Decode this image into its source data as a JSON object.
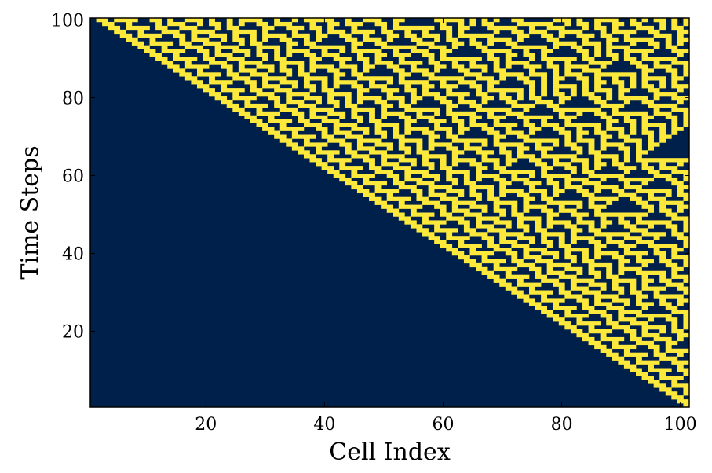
{
  "chart_data": {
    "type": "heatmap",
    "title": "",
    "xlabel": "Cell Index",
    "ylabel": "Time Steps",
    "xlim": [
      1,
      101
    ],
    "ylim": [
      1,
      100
    ],
    "x_ticks": [
      20,
      40,
      60,
      80,
      100
    ],
    "y_ticks": [
      20,
      40,
      60,
      80,
      100
    ],
    "grid": false,
    "legend": "none",
    "colormap": {
      "0": "#00204c",
      "1": "#fde93b"
    },
    "cells": {
      "width": 101,
      "steps": 100,
      "rule": 30,
      "initial_active_cell": 101,
      "boundary": "fixed-zero",
      "description_of_values": "cell state 0 or 1 per time step"
    }
  }
}
